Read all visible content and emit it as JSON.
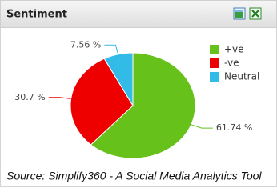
{
  "chart_data": {
    "type": "pie",
    "title": "Sentiment",
    "categories": [
      "+ve",
      "-ve",
      "Neutral"
    ],
    "values": [
      61.74,
      30.7,
      7.56
    ],
    "value_labels": [
      "61.74 %",
      "30.7 %",
      "7.56 %"
    ],
    "colors": [
      "#66c21a",
      "#ee0000",
      "#33bbe8"
    ],
    "legend": "right",
    "source": "Source: Simplify360 - A Social Media Analytics Tool"
  }
}
